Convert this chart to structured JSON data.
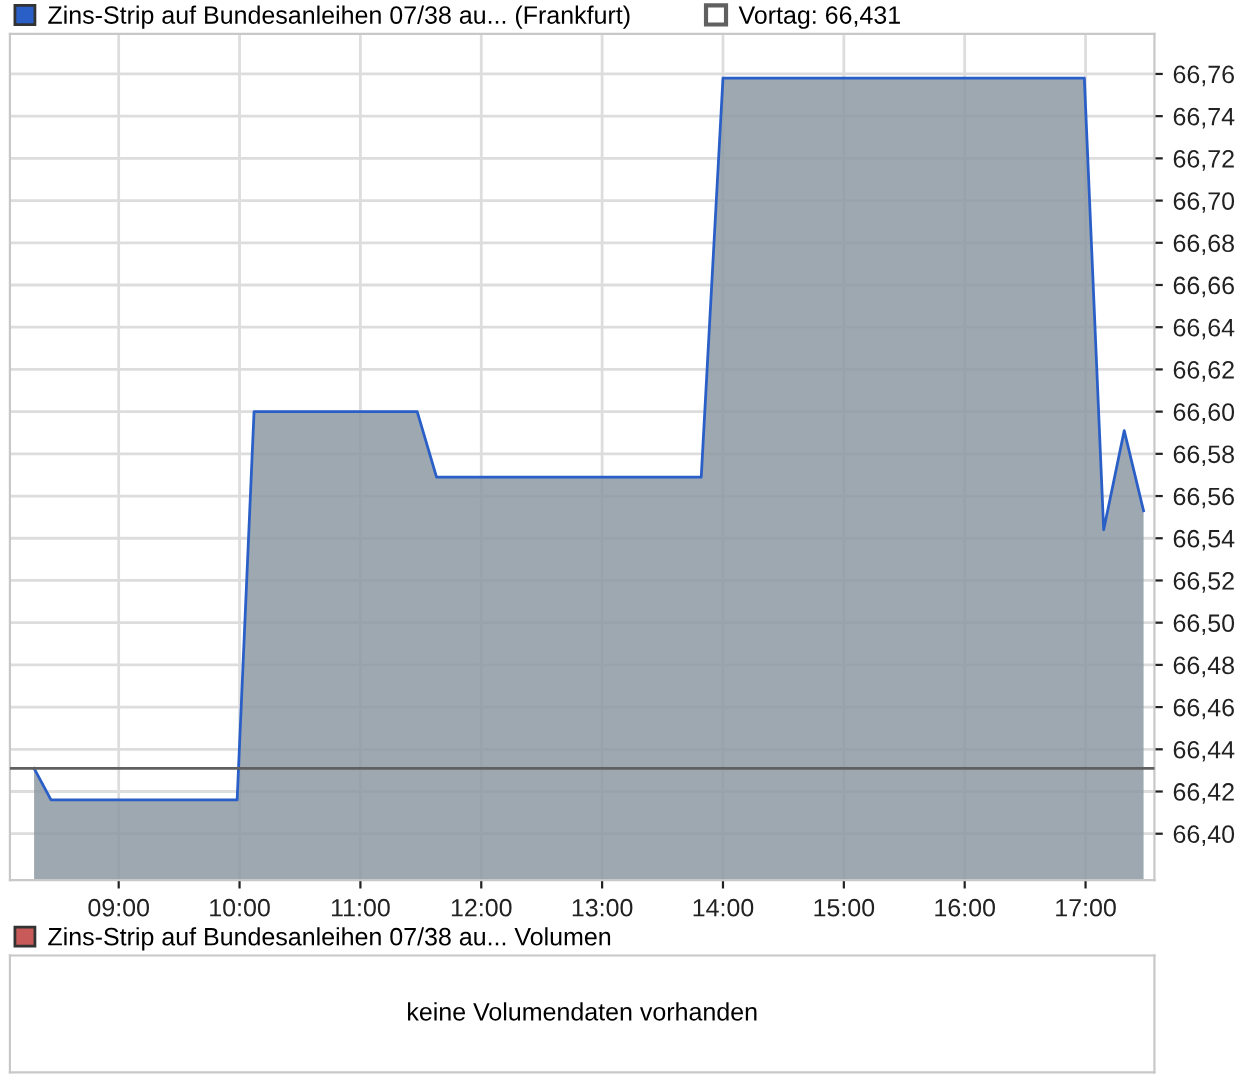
{
  "chart_data": [
    {
      "type": "area",
      "series": [
        {
          "name": "Zins-Strip auf Bundesanleihen 07/38 au... (Frankfurt)",
          "color": "#2a5fc8",
          "x": [
            8.3,
            8.44,
            9.98,
            10.12,
            11.47,
            11.63,
            13.82,
            14.0,
            16.99,
            17.15,
            17.32,
            17.48
          ],
          "values": [
            66.431,
            66.416,
            66.416,
            66.6,
            66.6,
            66.569,
            66.569,
            66.758,
            66.758,
            66.544,
            66.591,
            66.553
          ]
        }
      ],
      "xlim": [
        8.1,
        17.57
      ],
      "ylim": [
        66.378,
        66.779
      ],
      "xticks": [
        {
          "value": 9,
          "label": "09:00"
        },
        {
          "value": 10,
          "label": "10:00"
        },
        {
          "value": 11,
          "label": "11:00"
        },
        {
          "value": 12,
          "label": "12:00"
        },
        {
          "value": 13,
          "label": "13:00"
        },
        {
          "value": 14,
          "label": "14:00"
        },
        {
          "value": 15,
          "label": "15:00"
        },
        {
          "value": 16,
          "label": "16:00"
        },
        {
          "value": 17,
          "label": "17:00"
        }
      ],
      "yticks": [
        {
          "value": 66.4,
          "label": "66,40"
        },
        {
          "value": 66.42,
          "label": "66,42"
        },
        {
          "value": 66.44,
          "label": "66,44"
        },
        {
          "value": 66.46,
          "label": "66,46"
        },
        {
          "value": 66.48,
          "label": "66,48"
        },
        {
          "value": 66.5,
          "label": "66,50"
        },
        {
          "value": 66.52,
          "label": "66,52"
        },
        {
          "value": 66.54,
          "label": "66,54"
        },
        {
          "value": 66.56,
          "label": "66,56"
        },
        {
          "value": 66.58,
          "label": "66,58"
        },
        {
          "value": 66.6,
          "label": "66,60"
        },
        {
          "value": 66.62,
          "label": "66,62"
        },
        {
          "value": 66.64,
          "label": "66,64"
        },
        {
          "value": 66.66,
          "label": "66,66"
        },
        {
          "value": 66.68,
          "label": "66,68"
        },
        {
          "value": 66.7,
          "label": "66,70"
        },
        {
          "value": 66.72,
          "label": "66,72"
        },
        {
          "value": 66.74,
          "label": "66,74"
        },
        {
          "value": 66.76,
          "label": "66,76"
        }
      ],
      "ref_lines": [
        {
          "axis": "y",
          "value": 66.431,
          "label": "Vortag: 66,431",
          "color": "#606060"
        }
      ],
      "grid": true,
      "legend": "top left"
    },
    {
      "type": "other",
      "series": [
        {
          "name": "Zins-Strip auf Bundesanleihen 07/38 au... Volumen",
          "color": "#c85a5a"
        }
      ],
      "annotations": [
        "keine Volumendaten vorhanden"
      ],
      "legend": "top left"
    }
  ]
}
